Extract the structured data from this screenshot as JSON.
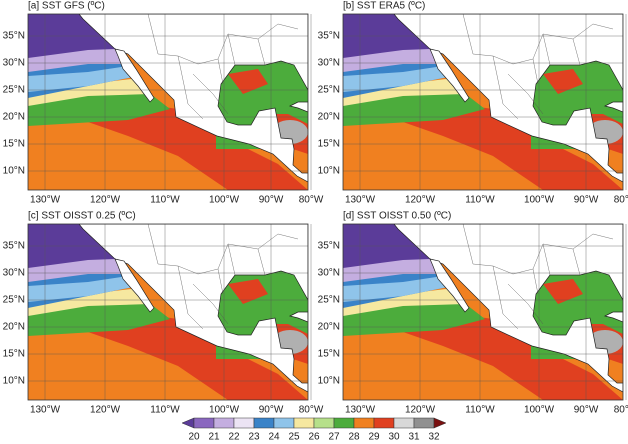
{
  "panels": [
    {
      "title": "[a]  SST GFS  (ºC)"
    },
    {
      "title": "[b]  SST ERA5  (ºC)"
    },
    {
      "title": "[c]  SST OISST 0.25 (ºC)"
    },
    {
      "title": "[d]  SST OISST 0.50  (ºC)"
    }
  ],
  "lat_ticks": [
    "35°N",
    "30°N",
    "25°N",
    "20°N",
    "15°N",
    "10°N"
  ],
  "lon_ticks": [
    "130°W",
    "120°W",
    "110°W",
    "100°W",
    "90°W",
    "80°W"
  ],
  "colorbar": {
    "labels": [
      20,
      21,
      22,
      23,
      24,
      25,
      26,
      27,
      28,
      29,
      30,
      31,
      32
    ],
    "colors": [
      "#5b3c99",
      "#8a67bf",
      "#c4aee0",
      "#ece4f4",
      "#3a83c8",
      "#8fc4ea",
      "#f6e8a0",
      "#b6e08a",
      "#4cac3c",
      "#f08020",
      "#e04020",
      "#d8d8d8",
      "#909090",
      "#7a1010"
    ]
  }
}
